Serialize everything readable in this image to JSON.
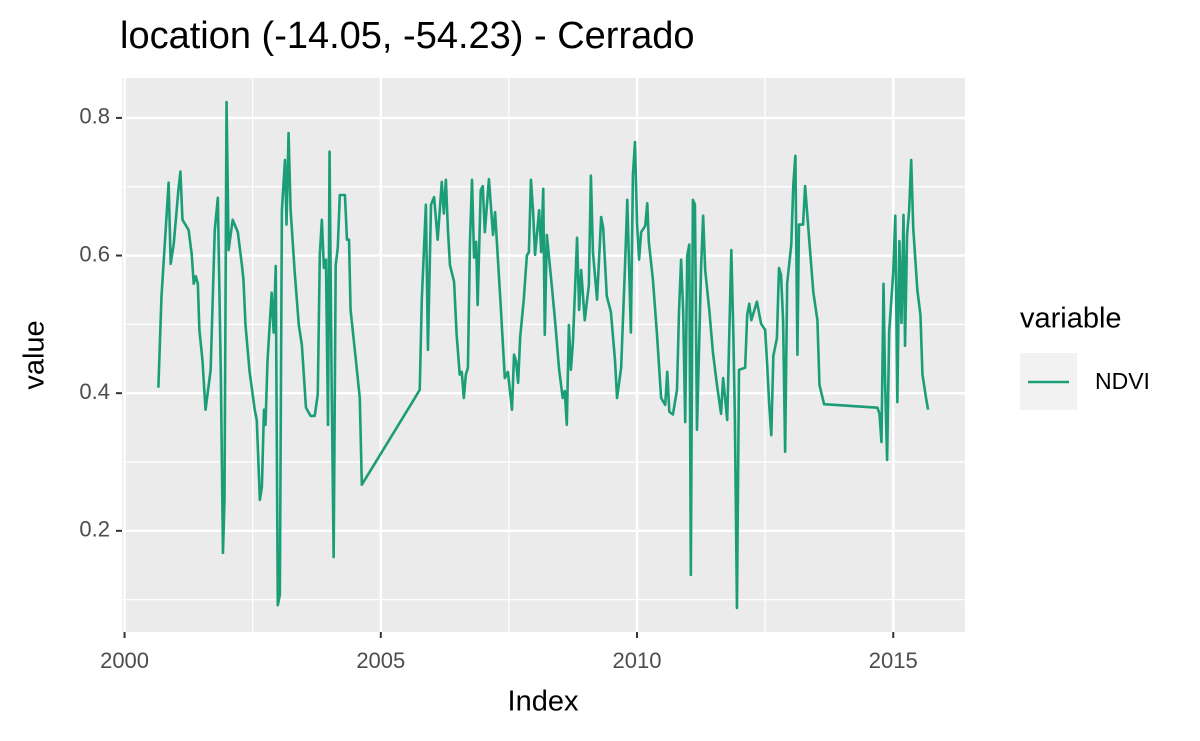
{
  "chart_data": {
    "type": "line",
    "title": "location (-14.05, -54.23) - Cerrado",
    "x_label": "Index",
    "y_label": "value",
    "legend_title": "variable",
    "legend_position": "right",
    "grid": true,
    "xlim": [
      1999.95,
      2016.4
    ],
    "ylim": [
      0.053,
      0.858
    ],
    "xticks": [
      2000,
      2005,
      2010,
      2015
    ],
    "yticks": [
      0.2,
      0.4,
      0.6,
      0.8
    ],
    "x": [
      2000.66,
      2000.72,
      2000.86,
      2000.9,
      2000.96,
      2001.05,
      2001.09,
      2001.13,
      2001.25,
      2001.31,
      2001.35,
      2001.39,
      2001.43,
      2001.46,
      2001.52,
      2001.58,
      2001.68,
      2001.72,
      2001.76,
      2001.82,
      2001.88,
      2001.92,
      2001.95,
      2001.99,
      2002.03,
      2002.11,
      2002.21,
      2002.29,
      2002.32,
      2002.36,
      2002.44,
      2002.54,
      2002.58,
      2002.64,
      2002.68,
      2002.72,
      2002.75,
      2002.79,
      2002.87,
      2002.91,
      2002.95,
      2002.99,
      2003.03,
      2003.07,
      2003.13,
      2003.16,
      2003.2,
      2003.24,
      2003.32,
      2003.4,
      2003.46,
      2003.54,
      2003.63,
      2003.71,
      2003.77,
      2003.81,
      2003.85,
      2003.89,
      2003.93,
      2003.97,
      2004.0,
      2004.04,
      2004.08,
      2004.12,
      2004.16,
      2004.2,
      2004.3,
      2004.34,
      2004.38,
      2004.41,
      2004.51,
      2004.59,
      2004.63,
      2005.64,
      2005.76,
      2005.8,
      2005.88,
      2005.92,
      2005.98,
      2006.04,
      2006.11,
      2006.19,
      2006.23,
      2006.27,
      2006.31,
      2006.35,
      2006.43,
      2006.48,
      2006.54,
      2006.58,
      2006.62,
      2006.66,
      2006.7,
      2006.74,
      2006.78,
      2006.82,
      2006.86,
      2006.89,
      2006.95,
      2006.99,
      2007.03,
      2007.11,
      2007.19,
      2007.23,
      2007.27,
      2007.34,
      2007.42,
      2007.48,
      2007.56,
      2007.6,
      2007.64,
      2007.68,
      2007.72,
      2007.79,
      2007.85,
      2007.89,
      2007.93,
      2007.97,
      2008.01,
      2008.09,
      2008.13,
      2008.17,
      2008.2,
      2008.24,
      2008.32,
      2008.4,
      2008.48,
      2008.55,
      2008.59,
      2008.63,
      2008.67,
      2008.71,
      2008.75,
      2008.83,
      2008.87,
      2008.91,
      2008.98,
      2009.06,
      2009.1,
      2009.14,
      2009.22,
      2009.3,
      2009.34,
      2009.41,
      2009.49,
      2009.57,
      2009.61,
      2009.69,
      2009.77,
      2009.81,
      2009.88,
      2009.92,
      2009.96,
      2010.0,
      2010.04,
      2010.08,
      2010.16,
      2010.2,
      2010.23,
      2010.31,
      2010.39,
      2010.47,
      2010.55,
      2010.59,
      2010.63,
      2010.7,
      2010.78,
      2010.82,
      2010.86,
      2010.9,
      2010.94,
      2010.98,
      2011.02,
      2011.05,
      2011.09,
      2011.13,
      2011.17,
      2011.25,
      2011.29,
      2011.33,
      2011.41,
      2011.48,
      2011.56,
      2011.64,
      2011.68,
      2011.76,
      2011.84,
      2011.88,
      2011.91,
      2011.95,
      2011.99,
      2012.11,
      2012.15,
      2012.19,
      2012.23,
      2012.34,
      2012.42,
      2012.5,
      2012.54,
      2012.58,
      2012.62,
      2012.66,
      2012.73,
      2012.77,
      2012.81,
      2012.85,
      2012.89,
      2012.93,
      2013.01,
      2013.05,
      2013.09,
      2013.13,
      2013.16,
      2013.24,
      2013.28,
      2013.36,
      2013.44,
      2013.52,
      2013.56,
      2013.65,
      2014.69,
      2014.73,
      2014.77,
      2014.81,
      2014.84,
      2014.88,
      2014.92,
      2015.0,
      2015.04,
      2015.08,
      2015.12,
      2015.16,
      2015.2,
      2015.23,
      2015.27,
      2015.31,
      2015.35,
      2015.39,
      2015.47,
      2015.53,
      2015.57,
      2015.64,
      2015.68
    ],
    "series": [
      {
        "name": "NDVI",
        "color": "#1b9e77",
        "values": [
          0.408,
          0.54,
          0.706,
          0.588,
          0.617,
          0.695,
          0.722,
          0.652,
          0.637,
          0.602,
          0.559,
          0.57,
          0.559,
          0.492,
          0.448,
          0.376,
          0.434,
          0.536,
          0.637,
          0.684,
          0.419,
          0.168,
          0.245,
          0.823,
          0.608,
          0.652,
          0.634,
          0.586,
          0.565,
          0.499,
          0.431,
          0.376,
          0.361,
          0.245,
          0.264,
          0.376,
          0.354,
          0.448,
          0.546,
          0.488,
          0.585,
          0.092,
          0.107,
          0.666,
          0.739,
          0.645,
          0.778,
          0.666,
          0.576,
          0.499,
          0.47,
          0.379,
          0.367,
          0.367,
          0.398,
          0.601,
          0.652,
          0.582,
          0.594,
          0.354,
          0.751,
          0.419,
          0.162,
          0.586,
          0.611,
          0.688,
          0.688,
          0.623,
          0.623,
          0.521,
          0.451,
          0.393,
          0.267,
          0.39,
          0.405,
          0.536,
          0.674,
          0.463,
          0.674,
          0.685,
          0.623,
          0.707,
          0.661,
          0.71,
          0.637,
          0.586,
          0.562,
          0.485,
          0.427,
          0.431,
          0.393,
          0.427,
          0.437,
          0.62,
          0.71,
          0.597,
          0.62,
          0.528,
          0.695,
          0.701,
          0.634,
          0.711,
          0.63,
          0.663,
          0.614,
          0.527,
          0.422,
          0.431,
          0.376,
          0.456,
          0.446,
          0.415,
          0.482,
          0.536,
          0.6,
          0.605,
          0.71,
          0.666,
          0.601,
          0.666,
          0.605,
          0.697,
          0.485,
          0.63,
          0.569,
          0.506,
          0.434,
          0.393,
          0.403,
          0.354,
          0.499,
          0.434,
          0.475,
          0.626,
          0.521,
          0.579,
          0.506,
          0.557,
          0.716,
          0.605,
          0.536,
          0.656,
          0.64,
          0.541,
          0.518,
          0.448,
          0.393,
          0.437,
          0.594,
          0.681,
          0.488,
          0.717,
          0.765,
          0.647,
          0.594,
          0.634,
          0.643,
          0.676,
          0.62,
          0.565,
          0.485,
          0.393,
          0.383,
          0.431,
          0.373,
          0.369,
          0.405,
          0.521,
          0.594,
          0.521,
          0.358,
          0.6,
          0.616,
          0.136,
          0.681,
          0.674,
          0.347,
          0.582,
          0.658,
          0.579,
          0.521,
          0.46,
          0.412,
          0.37,
          0.422,
          0.361,
          0.608,
          0.485,
          0.361,
          0.088,
          0.434,
          0.437,
          0.514,
          0.53,
          0.506,
          0.533,
          0.501,
          0.492,
          0.441,
          0.383,
          0.339,
          0.454,
          0.48,
          0.582,
          0.572,
          0.506,
          0.315,
          0.56,
          0.616,
          0.703,
          0.745,
          0.456,
          0.645,
          0.645,
          0.701,
          0.623,
          0.547,
          0.506,
          0.412,
          0.384,
          0.379,
          0.371,
          0.329,
          0.559,
          0.419,
          0.303,
          0.489,
          0.576,
          0.658,
          0.387,
          0.621,
          0.502,
          0.659,
          0.469,
          0.63,
          0.666,
          0.739,
          0.64,
          0.55,
          0.514,
          0.427,
          0.393,
          0.376
        ]
      }
    ]
  }
}
